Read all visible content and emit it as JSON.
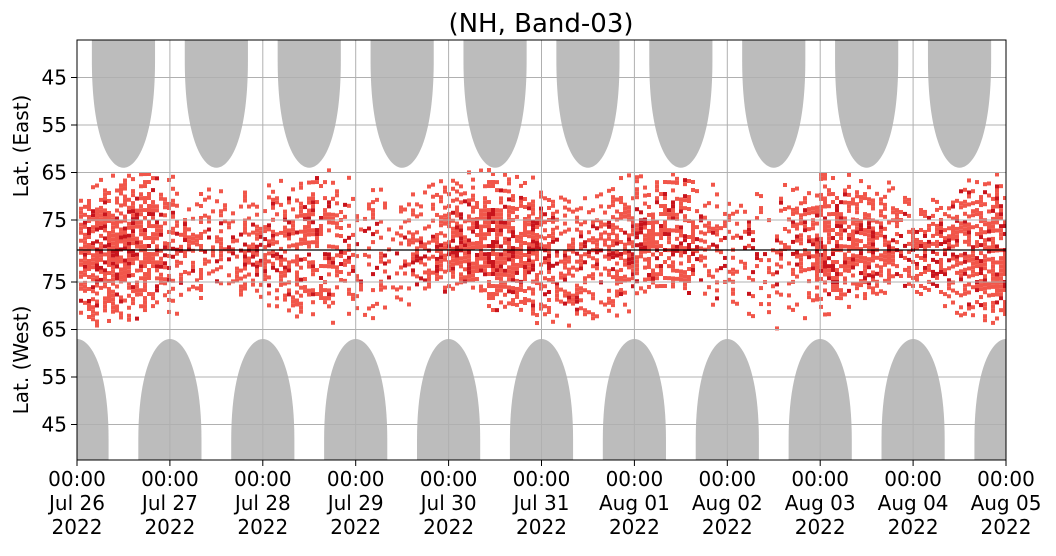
{
  "chart_data": {
    "type": "heatmap",
    "title": "(NH, Band-03)",
    "panels": [
      {
        "ylabel": "Lat. (East)",
        "yticks": [
          45,
          55,
          65,
          75
        ],
        "orientation": "east"
      },
      {
        "ylabel": "Lat. (West)",
        "yticks": [
          75,
          65,
          55,
          45
        ],
        "orientation": "west"
      }
    ],
    "x_ticks": [
      {
        "time": "00:00",
        "day": "Jul 26",
        "year": "2022"
      },
      {
        "time": "00:00",
        "day": "Jul 27",
        "year": "2022"
      },
      {
        "time": "00:00",
        "day": "Jul 28",
        "year": "2022"
      },
      {
        "time": "00:00",
        "day": "Jul 29",
        "year": "2022"
      },
      {
        "time": "00:00",
        "day": "Jul 30",
        "year": "2022"
      },
      {
        "time": "00:00",
        "day": "Jul 31",
        "year": "2022"
      },
      {
        "time": "00:00",
        "day": "Aug 01",
        "year": "2022"
      },
      {
        "time": "00:00",
        "day": "Aug 02",
        "year": "2022"
      },
      {
        "time": "00:00",
        "day": "Aug 03",
        "year": "2022"
      },
      {
        "time": "00:00",
        "day": "Aug 04",
        "year": "2022"
      },
      {
        "time": "00:00",
        "day": "Aug 05",
        "year": "2022"
      }
    ],
    "grid": true,
    "colors": {
      "gray": "#bcbcbc",
      "red_light": "#f1564a",
      "red_dark": "#c8141c",
      "axis": "#000000",
      "grid": "#b0b0b0"
    },
    "gray_bands_east": [
      0.5,
      1.5,
      2.5,
      3.5,
      4.5,
      5.5,
      6.5,
      7.5,
      8.5,
      9.5
    ],
    "gray_bands_west": [
      0.0,
      1.0,
      2.0,
      3.0,
      4.0,
      5.0,
      6.0,
      7.0,
      8.0,
      9.0,
      10.0
    ],
    "red_activity_center_lat": 80
  }
}
